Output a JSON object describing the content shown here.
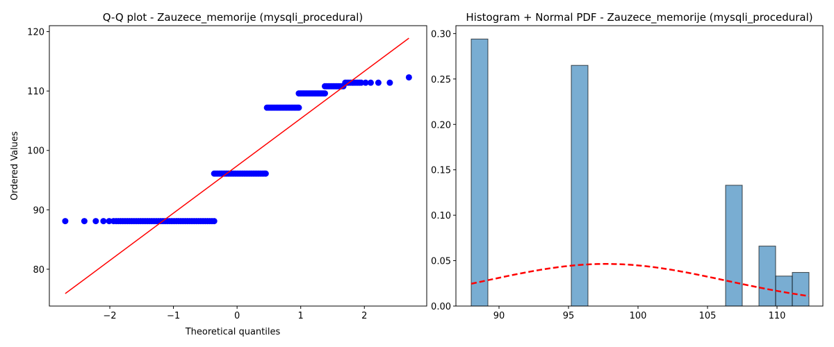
{
  "chart_data": [
    {
      "type": "scatter",
      "title": "Q-Q plot - Zauzece_memorije (mysqli_procedural)",
      "xlabel": "Theoretical quantiles",
      "ylabel": "Ordered Values",
      "xlim": [
        -2.95,
        2.98
      ],
      "ylim": [
        73.8,
        121.0
      ],
      "xticks": [
        -2,
        -1,
        0,
        1,
        2
      ],
      "xtick_labels": [
        "−2",
        "−1",
        "0",
        "1",
        "2"
      ],
      "yticks": [
        80,
        90,
        100,
        110,
        120
      ],
      "point_color": "#0000ff",
      "line_color": "#ff0000",
      "fit_line": {
        "x": [
          -2.7,
          2.7
        ],
        "y": [
          75.9,
          118.9
        ]
      },
      "groups": [
        {
          "value": 88.1,
          "x_start": -1.9,
          "x_end": -0.36,
          "count": 45,
          "extra_x": [
            -2.7,
            -2.4,
            -2.22,
            -2.1,
            -2.01,
            -1.94
          ]
        },
        {
          "value": 96.1,
          "x_start": -0.36,
          "x_end": 0.45,
          "count": 30,
          "extra_x": []
        },
        {
          "value": 107.2,
          "x_start": 0.47,
          "x_end": 0.97,
          "count": 22,
          "extra_x": []
        },
        {
          "value": 109.6,
          "x_start": 0.97,
          "x_end": 1.38,
          "count": 18,
          "extra_x": []
        },
        {
          "value": 110.8,
          "x_start": 1.38,
          "x_end": 1.67,
          "count": 12,
          "extra_x": []
        },
        {
          "value": 111.4,
          "x_start": 1.7,
          "x_end": 1.95,
          "count": 10,
          "extra_x": [
            2.02,
            2.1,
            2.22,
            2.4
          ]
        },
        {
          "value": 112.3,
          "x_start": 2.7,
          "x_end": 2.7,
          "count": 1,
          "extra_x": []
        }
      ]
    },
    {
      "type": "bar",
      "title": "Histogram + Normal PDF - Zauzece_memorije (mysqli_procedural)",
      "xlabel": "",
      "ylabel": "",
      "xlim": [
        86.9,
        113.3
      ],
      "ylim": [
        0,
        0.3087
      ],
      "xticks": [
        90,
        95,
        100,
        105,
        110
      ],
      "yticks": [
        0.0,
        0.05,
        0.1,
        0.15,
        0.2,
        0.25,
        0.3
      ],
      "ytick_labels": [
        "0.00",
        "0.05",
        "0.10",
        "0.15",
        "0.20",
        "0.25",
        "0.30"
      ],
      "bar_color": "#1f77b4",
      "bar_alpha": 0.6,
      "bins": [
        {
          "x0": 88.0,
          "x1": 89.2,
          "density": 0.294
        },
        {
          "x0": 95.2,
          "x1": 96.4,
          "density": 0.265
        },
        {
          "x0": 106.3,
          "x1": 107.5,
          "density": 0.133
        },
        {
          "x0": 108.7,
          "x1": 109.9,
          "density": 0.066
        },
        {
          "x0": 109.9,
          "x1": 111.1,
          "density": 0.033
        },
        {
          "x0": 111.1,
          "x1": 112.3,
          "density": 0.037
        }
      ],
      "pdf": {
        "mean": 97.7,
        "std": 8.6,
        "x_from": 88.0,
        "x_to": 112.3,
        "color": "#ff0000",
        "style": "dashed"
      }
    }
  ]
}
